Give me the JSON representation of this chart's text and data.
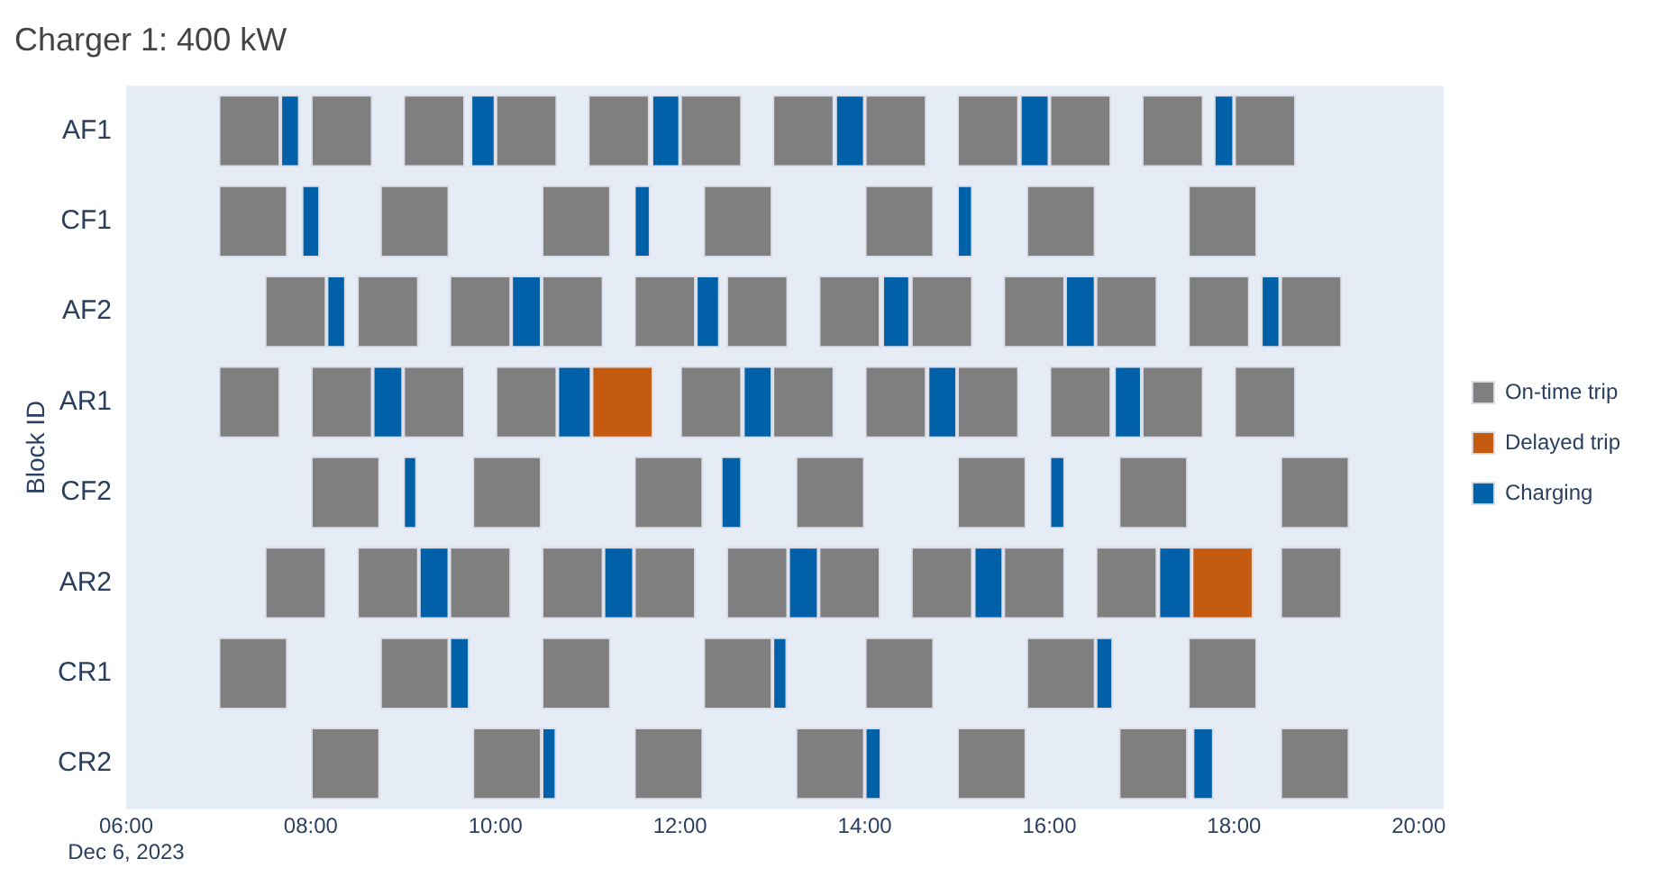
{
  "chart_data": {
    "type": "bar",
    "orientation": "horizontal",
    "title": "Charger 1: 400 kW",
    "ylabel": "Block ID",
    "categories": [
      "AF1",
      "CF1",
      "AF2",
      "AR1",
      "CF2",
      "AR2",
      "CR1",
      "CR2"
    ],
    "xlim": [
      6,
      20.27
    ],
    "xticks": [
      {
        "value": 6,
        "label": "06:00\nDec 6, 2023"
      },
      {
        "value": 8,
        "label": "08:00"
      },
      {
        "value": 10,
        "label": "10:00"
      },
      {
        "value": 12,
        "label": "12:00"
      },
      {
        "value": 14,
        "label": "14:00"
      },
      {
        "value": 16,
        "label": "16:00"
      },
      {
        "value": 18,
        "label": "18:00"
      },
      {
        "value": 20,
        "label": "20:00"
      }
    ],
    "legend": "right",
    "series": [
      {
        "name": "On-time trip",
        "color": "#7f7f7f",
        "base": [
          7,
          7,
          7.5,
          7,
          8,
          7.5,
          7,
          8
        ],
        "values": [
          0.67,
          0.75,
          0.67,
          0.67,
          0.75,
          0.67,
          0.75,
          0.75
        ]
      },
      {
        "name": "Delayed trip",
        "color": "#c55a11",
        "base": [
          null,
          null,
          null,
          11.04,
          null,
          17.54,
          null,
          null
        ],
        "values": [
          null,
          null,
          null,
          0.67,
          null,
          0.67,
          null,
          null
        ]
      },
      {
        "name": "Charging",
        "color": "#0060a8",
        "base": [
          7.67,
          7.9,
          8.17,
          8.67,
          9,
          9.17,
          9.5,
          10.5
        ],
        "values": [
          0.21,
          0.2,
          0.21,
          0.33,
          0.15,
          0.33,
          0.22,
          0.16
        ]
      },
      {
        "color": "#7f7f7f",
        "base": [
          8,
          8.75,
          8.5,
          8,
          9.75,
          8.5,
          8.75,
          9.75
        ],
        "values": [
          0.67,
          0.75,
          0.67,
          0.67,
          0.75,
          0.67,
          0.75,
          0.75
        ]
      },
      {
        "color": "#7f7f7f",
        "base": [
          9,
          10.5,
          9.5,
          9,
          11.5,
          9.5,
          10.5,
          11.5
        ],
        "values": [
          0.67,
          0.75,
          0.67,
          0.67,
          0.75,
          0.67,
          0.75,
          0.75
        ]
      },
      {
        "color": "#7f7f7f",
        "base": [
          10,
          12.25,
          10.5,
          10,
          13.25,
          10.5,
          12.25,
          13.25
        ],
        "values": [
          0.67,
          0.75,
          0.67,
          0.67,
          0.75,
          0.67,
          0.75,
          0.75
        ]
      },
      {
        "color": "#7f7f7f",
        "base": [
          11,
          14,
          11.5,
          12,
          15,
          11.5,
          14,
          15
        ],
        "values": [
          0.67,
          0.75,
          0.67,
          0.67,
          0.75,
          0.67,
          0.75,
          0.75
        ]
      },
      {
        "color": "#7f7f7f",
        "base": [
          12,
          15.75,
          12.5,
          13,
          16.75,
          12.5,
          15.75,
          16.75
        ],
        "values": [
          0.67,
          0.75,
          0.67,
          0.67,
          0.75,
          0.67,
          0.75,
          0.75
        ]
      },
      {
        "color": "#7f7f7f",
        "base": [
          13,
          17.5,
          13.5,
          14,
          18.5,
          13.5,
          17.5,
          18.5
        ],
        "values": [
          0.67,
          0.75,
          0.67,
          0.67,
          0.75,
          0.67,
          0.75,
          0.75
        ]
      },
      {
        "color": "#7f7f7f",
        "base": [
          14,
          null,
          14.5,
          15,
          null,
          14.5,
          null,
          null
        ],
        "values": [
          0.67,
          null,
          0.67,
          0.67,
          null,
          0.67,
          null,
          null
        ]
      },
      {
        "color": "#7f7f7f",
        "base": [
          15,
          null,
          15.5,
          16,
          null,
          15.5,
          null,
          null
        ],
        "values": [
          0.67,
          null,
          0.67,
          0.67,
          null,
          0.67,
          null,
          null
        ]
      },
      {
        "color": "#7f7f7f",
        "base": [
          16,
          null,
          16.5,
          17,
          null,
          16.5,
          null,
          null
        ],
        "values": [
          0.67,
          null,
          0.67,
          0.67,
          null,
          0.67,
          null,
          null
        ]
      },
      {
        "color": "#7f7f7f",
        "base": [
          17,
          null,
          17.5,
          18,
          null,
          18.5,
          null,
          null
        ],
        "values": [
          0.67,
          null,
          0.67,
          0.67,
          null,
          0.67,
          null,
          null
        ]
      },
      {
        "color": "#7f7f7f",
        "base": [
          18,
          null,
          18.5,
          null,
          null,
          null,
          null,
          null
        ],
        "values": [
          0.67,
          null,
          0.67,
          null,
          null,
          null,
          null,
          null
        ]
      },
      {
        "color": "#0060a8",
        "base": [
          9.73,
          11.5,
          10.17,
          10.67,
          12.44,
          11.17,
          13,
          14
        ],
        "values": [
          0.27,
          0.18,
          0.33,
          0.37,
          0.23,
          0.33,
          0.16,
          0.18
        ]
      },
      {
        "color": "#0060a8",
        "base": [
          11.69,
          15,
          12.17,
          12.68,
          16,
          13.17,
          16.5,
          17.55
        ],
        "values": [
          0.31,
          0.17,
          0.26,
          0.32,
          0.17,
          0.33,
          0.19,
          0.23
        ]
      },
      {
        "color": "#0060a8",
        "base": [
          13.68,
          null,
          14.19,
          14.68,
          null,
          15.18,
          null,
          null
        ],
        "values": [
          0.32,
          null,
          0.3,
          0.32,
          null,
          0.32,
          null,
          null
        ]
      },
      {
        "color": "#0060a8",
        "base": [
          15.68,
          null,
          16.17,
          16.7,
          null,
          17.18,
          null,
          null
        ],
        "values": [
          0.32,
          null,
          0.33,
          0.3,
          null,
          0.36,
          null,
          null
        ]
      },
      {
        "color": "#0060a8",
        "base": [
          17.78,
          null,
          18.29,
          null,
          null,
          null,
          null,
          null
        ],
        "values": [
          0.22,
          null,
          0.21,
          null,
          null,
          null,
          null,
          null
        ]
      }
    ]
  }
}
